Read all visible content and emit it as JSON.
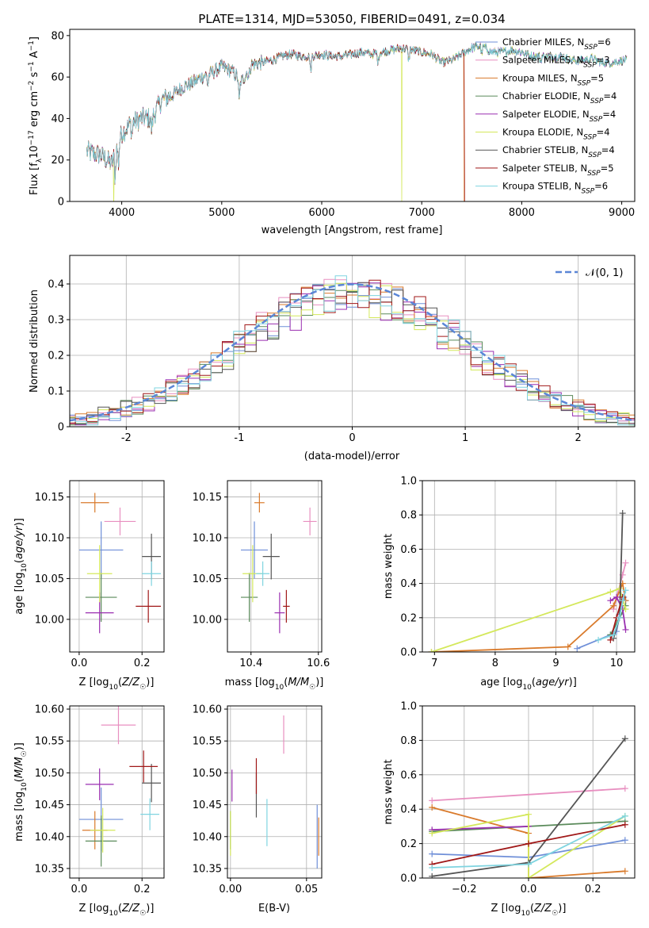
{
  "figure_title": "PLATE=1314, MJD=53050, FIBERID=0491, z=0.034",
  "models": [
    {
      "name": "Chabrier MILES",
      "nssp": "6",
      "color": "#6f8fd8"
    },
    {
      "name": "Salpeter MILES",
      "nssp": "3",
      "color": "#e88fc0"
    },
    {
      "name": "Kroupa MILES",
      "nssp": "5",
      "color": "#d97a2b"
    },
    {
      "name": "Chabrier ELODIE",
      "nssp": "4",
      "color": "#5a8a5a"
    },
    {
      "name": "Salpeter ELODIE",
      "nssp": "4",
      "color": "#9a2fb0"
    },
    {
      "name": "Kroupa ELODIE",
      "nssp": "4",
      "color": "#d4e85c"
    },
    {
      "name": "Chabrier STELIB",
      "nssp": "4",
      "color": "#555555"
    },
    {
      "name": "Salpeter STELIB",
      "nssp": "5",
      "color": "#a01818"
    },
    {
      "name": "Kroupa STELIB",
      "nssp": "6",
      "color": "#7fd4e0"
    }
  ],
  "chart_data": [
    {
      "id": "spectrum",
      "type": "line",
      "xlabel": "wavelength [Angstrom, rest frame]",
      "ylabel": "Flux [f_λ 10^-17 erg cm^-2 s^-1 A^-1]",
      "xlim": [
        3480,
        9130
      ],
      "ylim": [
        0,
        83
      ],
      "xticks": [
        4000,
        5000,
        6000,
        7000,
        8000,
        9000
      ],
      "yticks": [
        0,
        20,
        40,
        60,
        80
      ],
      "x_range": [
        3650,
        9050
      ],
      "envelope": [
        [
          3650,
          24
        ],
        [
          3800,
          22
        ],
        [
          3900,
          18
        ],
        [
          4000,
          33
        ],
        [
          4100,
          38
        ],
        [
          4200,
          40
        ],
        [
          4300,
          40
        ],
        [
          4400,
          49
        ],
        [
          4500,
          51
        ],
        [
          4600,
          55
        ],
        [
          4700,
          57
        ],
        [
          4800,
          60
        ],
        [
          4900,
          62
        ],
        [
          5000,
          65
        ],
        [
          5100,
          63
        ],
        [
          5200,
          58
        ],
        [
          5300,
          66
        ],
        [
          5400,
          67
        ],
        [
          5500,
          68
        ],
        [
          5600,
          70
        ],
        [
          5700,
          71
        ],
        [
          5800,
          70
        ],
        [
          5900,
          70
        ],
        [
          6000,
          71
        ],
        [
          6100,
          70
        ],
        [
          6200,
          70
        ],
        [
          6300,
          71
        ],
        [
          6400,
          72
        ],
        [
          6500,
          71
        ],
        [
          6600,
          72
        ],
        [
          6700,
          73
        ],
        [
          6800,
          74
        ],
        [
          6900,
          73
        ],
        [
          7000,
          72
        ],
        [
          7100,
          71
        ],
        [
          7200,
          67
        ],
        [
          7300,
          68
        ],
        [
          7400,
          71
        ],
        [
          7500,
          74
        ],
        [
          7600,
          75
        ],
        [
          7700,
          72
        ],
        [
          7800,
          72
        ],
        [
          7900,
          73
        ],
        [
          8000,
          72
        ],
        [
          8100,
          70
        ],
        [
          8200,
          70
        ],
        [
          8300,
          70
        ],
        [
          8400,
          70
        ],
        [
          8500,
          68
        ],
        [
          8600,
          68
        ],
        [
          8700,
          69
        ],
        [
          8800,
          67
        ],
        [
          8900,
          67
        ],
        [
          9000,
          68
        ]
      ],
      "cutoffs": [
        {
          "model": 5,
          "x": 3920
        },
        {
          "model": 5,
          "x": 6800
        },
        {
          "model": 2,
          "x": 7420
        },
        {
          "model": 7,
          "x": 7430
        }
      ],
      "legend": "top-right"
    },
    {
      "id": "residuals",
      "type": "histogram",
      "xlabel": "(data-model)/error",
      "ylabel": "Normed distribution",
      "xlim": [
        -2.5,
        2.5
      ],
      "ylim": [
        0,
        0.48
      ],
      "xticks": [
        -2,
        -1,
        0,
        1,
        2
      ],
      "yticks": [
        0.0,
        0.1,
        0.2,
        0.3,
        0.4
      ],
      "bin_width": 0.1,
      "reference": {
        "label": "𝒩(0, 1)",
        "mean": 0,
        "sigma": 1,
        "color": "#5a86d6"
      },
      "legend": "top-right"
    },
    {
      "id": "age_vs_Z",
      "type": "scatter",
      "xlabel": "Z [log10(Z/Z☉)]",
      "ylabel": "age [log10(age/yr)]",
      "xlim": [
        -0.03,
        0.27
      ],
      "ylim": [
        9.96,
        10.17
      ],
      "xticks": [
        0.0,
        0.2
      ],
      "xticklabels": [
        "0.0",
        "0.2"
      ],
      "yticks": [
        10.0,
        10.05,
        10.1,
        10.15
      ],
      "yticklabels": [
        "10.00",
        "10.05",
        "10.10",
        "10.15"
      ],
      "points": [
        {
          "model": 0,
          "x": 0.07,
          "xerr": 0.07,
          "y": 10.085,
          "yerr": 0.035
        },
        {
          "model": 1,
          "x": 0.13,
          "xerr": 0.05,
          "y": 10.12,
          "yerr": 0.017
        },
        {
          "model": 2,
          "x": 0.05,
          "xerr": 0.045,
          "y": 10.143,
          "yerr": 0.012
        },
        {
          "model": 3,
          "x": 0.07,
          "xerr": 0.05,
          "y": 10.027,
          "yerr": 0.03
        },
        {
          "model": 4,
          "x": 0.065,
          "xerr": 0.045,
          "y": 10.008,
          "yerr": 0.025
        },
        {
          "model": 5,
          "x": 0.065,
          "xerr": 0.04,
          "y": 10.056,
          "yerr": 0.035
        },
        {
          "model": 6,
          "x": 0.23,
          "xerr": 0.03,
          "y": 10.077,
          "yerr": 0.028
        },
        {
          "model": 7,
          "x": 0.22,
          "xerr": 0.04,
          "y": 10.016,
          "yerr": 0.02
        },
        {
          "model": 8,
          "x": 0.23,
          "xerr": 0.03,
          "y": 10.056,
          "yerr": 0.015
        }
      ]
    },
    {
      "id": "age_vs_mass",
      "type": "scatter",
      "xlabel": "mass [log10(M/M☉)]",
      "ylabel": "",
      "xlim": [
        10.33,
        10.61
      ],
      "ylim": [
        9.96,
        10.17
      ],
      "xticks": [
        10.4,
        10.6
      ],
      "xticklabels": [
        "10.4",
        "10.6"
      ],
      "yticks": [
        10.0,
        10.05,
        10.1,
        10.15
      ],
      "yticklabels": [
        "10.00",
        "10.05",
        "10.10",
        "10.15"
      ],
      "points": [
        {
          "model": 0,
          "x": 10.41,
          "xerr": 0.04,
          "y": 10.085,
          "yerr": 0.035
        },
        {
          "model": 1,
          "x": 10.575,
          "xerr": 0.02,
          "y": 10.12,
          "yerr": 0.017
        },
        {
          "model": 2,
          "x": 10.425,
          "xerr": 0.015,
          "y": 10.143,
          "yerr": 0.012
        },
        {
          "model": 3,
          "x": 10.395,
          "xerr": 0.025,
          "y": 10.027,
          "yerr": 0.03
        },
        {
          "model": 4,
          "x": 10.485,
          "xerr": 0.015,
          "y": 10.008,
          "yerr": 0.025
        },
        {
          "model": 5,
          "x": 10.405,
          "xerr": 0.03,
          "y": 10.056,
          "yerr": 0.035
        },
        {
          "model": 6,
          "x": 10.46,
          "xerr": 0.025,
          "y": 10.077,
          "yerr": 0.028
        },
        {
          "model": 7,
          "x": 10.505,
          "xerr": 0.01,
          "y": 10.016,
          "yerr": 0.02
        },
        {
          "model": 8,
          "x": 10.435,
          "xerr": 0.02,
          "y": 10.056,
          "yerr": 0.015
        }
      ]
    },
    {
      "id": "weight_vs_age",
      "type": "line",
      "xlabel": "age [log10(age/yr)]",
      "ylabel": "mass weight",
      "xlim": [
        6.8,
        10.3
      ],
      "ylim": [
        0,
        1.0
      ],
      "xticks": [
        7,
        8,
        9,
        10
      ],
      "xticklabels": [
        "7",
        "8",
        "9",
        "10"
      ],
      "yticks": [
        0.0,
        0.2,
        0.4,
        0.6,
        0.8,
        1.0
      ],
      "yticklabels": [
        "0.0",
        "0.2",
        "0.4",
        "0.6",
        "0.8",
        "1.0"
      ],
      "series": [
        {
          "model": 0,
          "x": [
            9.35,
            9.9,
            10.0,
            10.05,
            10.12,
            10.15
          ],
          "y": [
            0.02,
            0.1,
            0.12,
            0.22,
            0.32,
            0.3
          ]
        },
        {
          "model": 1,
          "x": [
            9.95,
            10.1,
            10.15
          ],
          "y": [
            0.25,
            0.45,
            0.52
          ]
        },
        {
          "model": 2,
          "x": [
            6.95,
            9.2,
            9.95,
            10.1,
            10.15
          ],
          "y": [
            0.0,
            0.03,
            0.27,
            0.4,
            0.3
          ]
        },
        {
          "model": 3,
          "x": [
            9.9,
            10.05,
            10.15
          ],
          "y": [
            0.1,
            0.2,
            0.27
          ]
        },
        {
          "model": 4,
          "x": [
            9.9,
            10.0,
            10.1,
            10.15
          ],
          "y": [
            0.3,
            0.32,
            0.25,
            0.13
          ]
        },
        {
          "model": 5,
          "x": [
            6.95,
            9.9,
            10.05,
            10.15
          ],
          "y": [
            0.0,
            0.35,
            0.37,
            0.25
          ]
        },
        {
          "model": 6,
          "x": [
            9.95,
            10.05,
            10.1
          ],
          "y": [
            0.08,
            0.2,
            0.81
          ]
        },
        {
          "model": 7,
          "x": [
            9.9,
            10.0,
            10.1
          ],
          "y": [
            0.07,
            0.2,
            0.32
          ]
        },
        {
          "model": 8,
          "x": [
            9.7,
            9.95,
            10.05,
            10.1,
            10.15
          ],
          "y": [
            0.07,
            0.1,
            0.2,
            0.3,
            0.36
          ]
        }
      ]
    },
    {
      "id": "mass_vs_Z",
      "type": "scatter",
      "xlabel": "Z [log10(Z/Z☉)]",
      "ylabel": "mass [log10(M/M☉)]",
      "xlim": [
        -0.03,
        0.27
      ],
      "ylim": [
        10.335,
        10.605
      ],
      "xticks": [
        0.0,
        0.2
      ],
      "xticklabels": [
        "0.0",
        "0.2"
      ],
      "yticks": [
        10.35,
        10.4,
        10.45,
        10.5,
        10.55,
        10.6
      ],
      "yticklabels": [
        "10.35",
        "10.40",
        "10.45",
        "10.50",
        "10.55",
        "10.60"
      ],
      "points": [
        {
          "model": 0,
          "x": 0.07,
          "xerr": 0.07,
          "y": 10.427,
          "yerr": 0.05
        },
        {
          "model": 1,
          "x": 0.125,
          "xerr": 0.055,
          "y": 10.575,
          "yerr": 0.03
        },
        {
          "model": 2,
          "x": 0.05,
          "xerr": 0.04,
          "y": 10.41,
          "yerr": 0.03
        },
        {
          "model": 3,
          "x": 0.07,
          "xerr": 0.05,
          "y": 10.393,
          "yerr": 0.04
        },
        {
          "model": 4,
          "x": 0.065,
          "xerr": 0.045,
          "y": 10.482,
          "yerr": 0.025
        },
        {
          "model": 5,
          "x": 0.075,
          "xerr": 0.04,
          "y": 10.41,
          "yerr": 0.035
        },
        {
          "model": 6,
          "x": 0.23,
          "xerr": 0.03,
          "y": 10.484,
          "yerr": 0.03
        },
        {
          "model": 7,
          "x": 0.205,
          "xerr": 0.045,
          "y": 10.51,
          "yerr": 0.025
        },
        {
          "model": 8,
          "x": 0.225,
          "xerr": 0.03,
          "y": 10.435,
          "yerr": 0.025
        }
      ]
    },
    {
      "id": "mass_vs_EBV",
      "type": "scatter",
      "xlabel": "E(B-V)",
      "ylabel": "",
      "xlim": [
        -0.002,
        0.06
      ],
      "ylim": [
        10.335,
        10.605
      ],
      "xticks": [
        0.0,
        0.05
      ],
      "xticklabels": [
        "0.00",
        "0.05"
      ],
      "yticks": [
        10.35,
        10.4,
        10.45,
        10.5,
        10.55,
        10.6
      ],
      "yticklabels": [
        "10.35",
        "10.40",
        "10.45",
        "10.50",
        "10.55",
        "10.60"
      ],
      "points": [
        {
          "model": 0,
          "x": 0.057,
          "xerr": 0,
          "y": 10.4,
          "yerr": 0.05
        },
        {
          "model": 1,
          "x": 0.035,
          "xerr": 0,
          "y": 10.56,
          "yerr": 0.03
        },
        {
          "model": 2,
          "x": 0.058,
          "xerr": 0,
          "y": 10.4,
          "yerr": 0.03
        },
        {
          "model": 3,
          "x": 0.0,
          "xerr": 0,
          "y": 10.41,
          "yerr": 0.03
        },
        {
          "model": 4,
          "x": 0.001,
          "xerr": 0,
          "y": 10.48,
          "yerr": 0.025
        },
        {
          "model": 5,
          "x": 0.0,
          "xerr": 0,
          "y": 10.405,
          "yerr": 0.035
        },
        {
          "model": 6,
          "x": 0.017,
          "xerr": 0,
          "y": 10.465,
          "yerr": 0.035
        },
        {
          "model": 7,
          "x": 0.017,
          "xerr": 0,
          "y": 10.495,
          "yerr": 0.028
        },
        {
          "model": 8,
          "x": 0.024,
          "xerr": 0,
          "y": 10.422,
          "yerr": 0.037
        }
      ]
    },
    {
      "id": "weight_vs_Z",
      "type": "line",
      "xlabel": "Z [log10(Z/Z☉)]",
      "ylabel": "mass weight",
      "xlim": [
        -0.33,
        0.33
      ],
      "ylim": [
        0,
        1.0
      ],
      "xticks": [
        -0.2,
        0.0,
        0.2
      ],
      "xticklabels": [
        "−0.2",
        "0.0",
        "0.2"
      ],
      "yticks": [
        0.0,
        0.2,
        0.4,
        0.6,
        0.8,
        1.0
      ],
      "yticklabels": [
        "0.0",
        "0.2",
        "0.4",
        "0.6",
        "0.8",
        "1.0"
      ],
      "series": [
        {
          "model": 0,
          "x": [
            -0.3,
            0.0,
            0.3
          ],
          "y": [
            0.14,
            0.12,
            0.22
          ]
        },
        {
          "model": 1,
          "x": [
            -0.3,
            0.3
          ],
          "y": [
            0.45,
            0.52
          ]
        },
        {
          "model": 2,
          "x": [
            -0.3,
            0.0,
            0.0,
            0.3
          ],
          "y": [
            0.41,
            0.26,
            0.0,
            0.04
          ]
        },
        {
          "model": 3,
          "x": [
            -0.3,
            0.0,
            0.3
          ],
          "y": [
            0.27,
            0.3,
            0.33
          ]
        },
        {
          "model": 4,
          "x": [
            -0.3,
            0.0
          ],
          "y": [
            0.28,
            0.3
          ]
        },
        {
          "model": 5,
          "x": [
            -0.3,
            0.0,
            0.0,
            0.3
          ],
          "y": [
            0.26,
            0.37,
            0.0,
            0.36
          ]
        },
        {
          "model": 6,
          "x": [
            -0.3,
            0.0,
            0.3
          ],
          "y": [
            0.01,
            0.09,
            0.81
          ]
        },
        {
          "model": 7,
          "x": [
            -0.3,
            0.0,
            0.3
          ],
          "y": [
            0.08,
            0.2,
            0.31
          ]
        },
        {
          "model": 8,
          "x": [
            -0.3,
            0.0,
            0.3
          ],
          "y": [
            0.06,
            0.08,
            0.36
          ]
        }
      ]
    }
  ]
}
